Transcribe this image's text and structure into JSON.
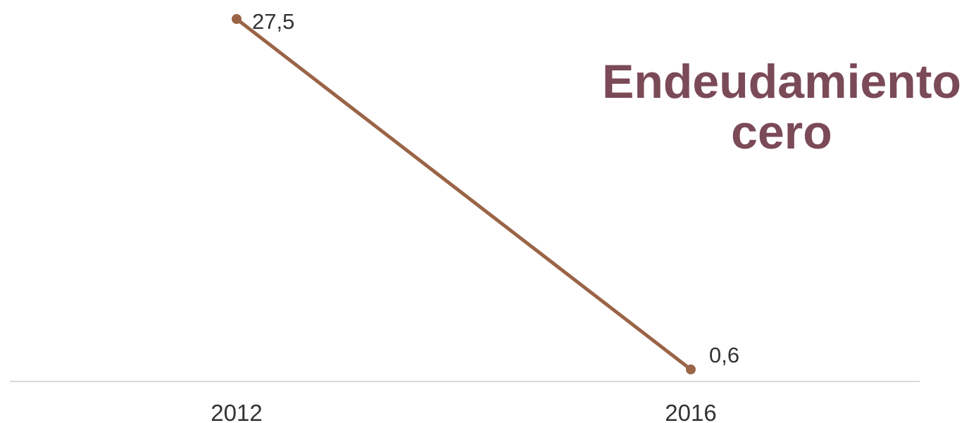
{
  "chart_data": {
    "type": "line",
    "title": [
      "Endeudamiento",
      "cero"
    ],
    "categories": [
      "2012",
      "2016"
    ],
    "series": [
      {
        "values": [
          27.5,
          0.6
        ],
        "labels": [
          "27,5",
          "0,6"
        ]
      }
    ],
    "xlabel": "",
    "ylabel": "",
    "ylim": [
      0,
      27.5
    ],
    "grid": false,
    "colors": {
      "line": "#9a6446",
      "title": "#7b4a57",
      "axis": "#d9d9d9",
      "text": "#333333"
    }
  }
}
